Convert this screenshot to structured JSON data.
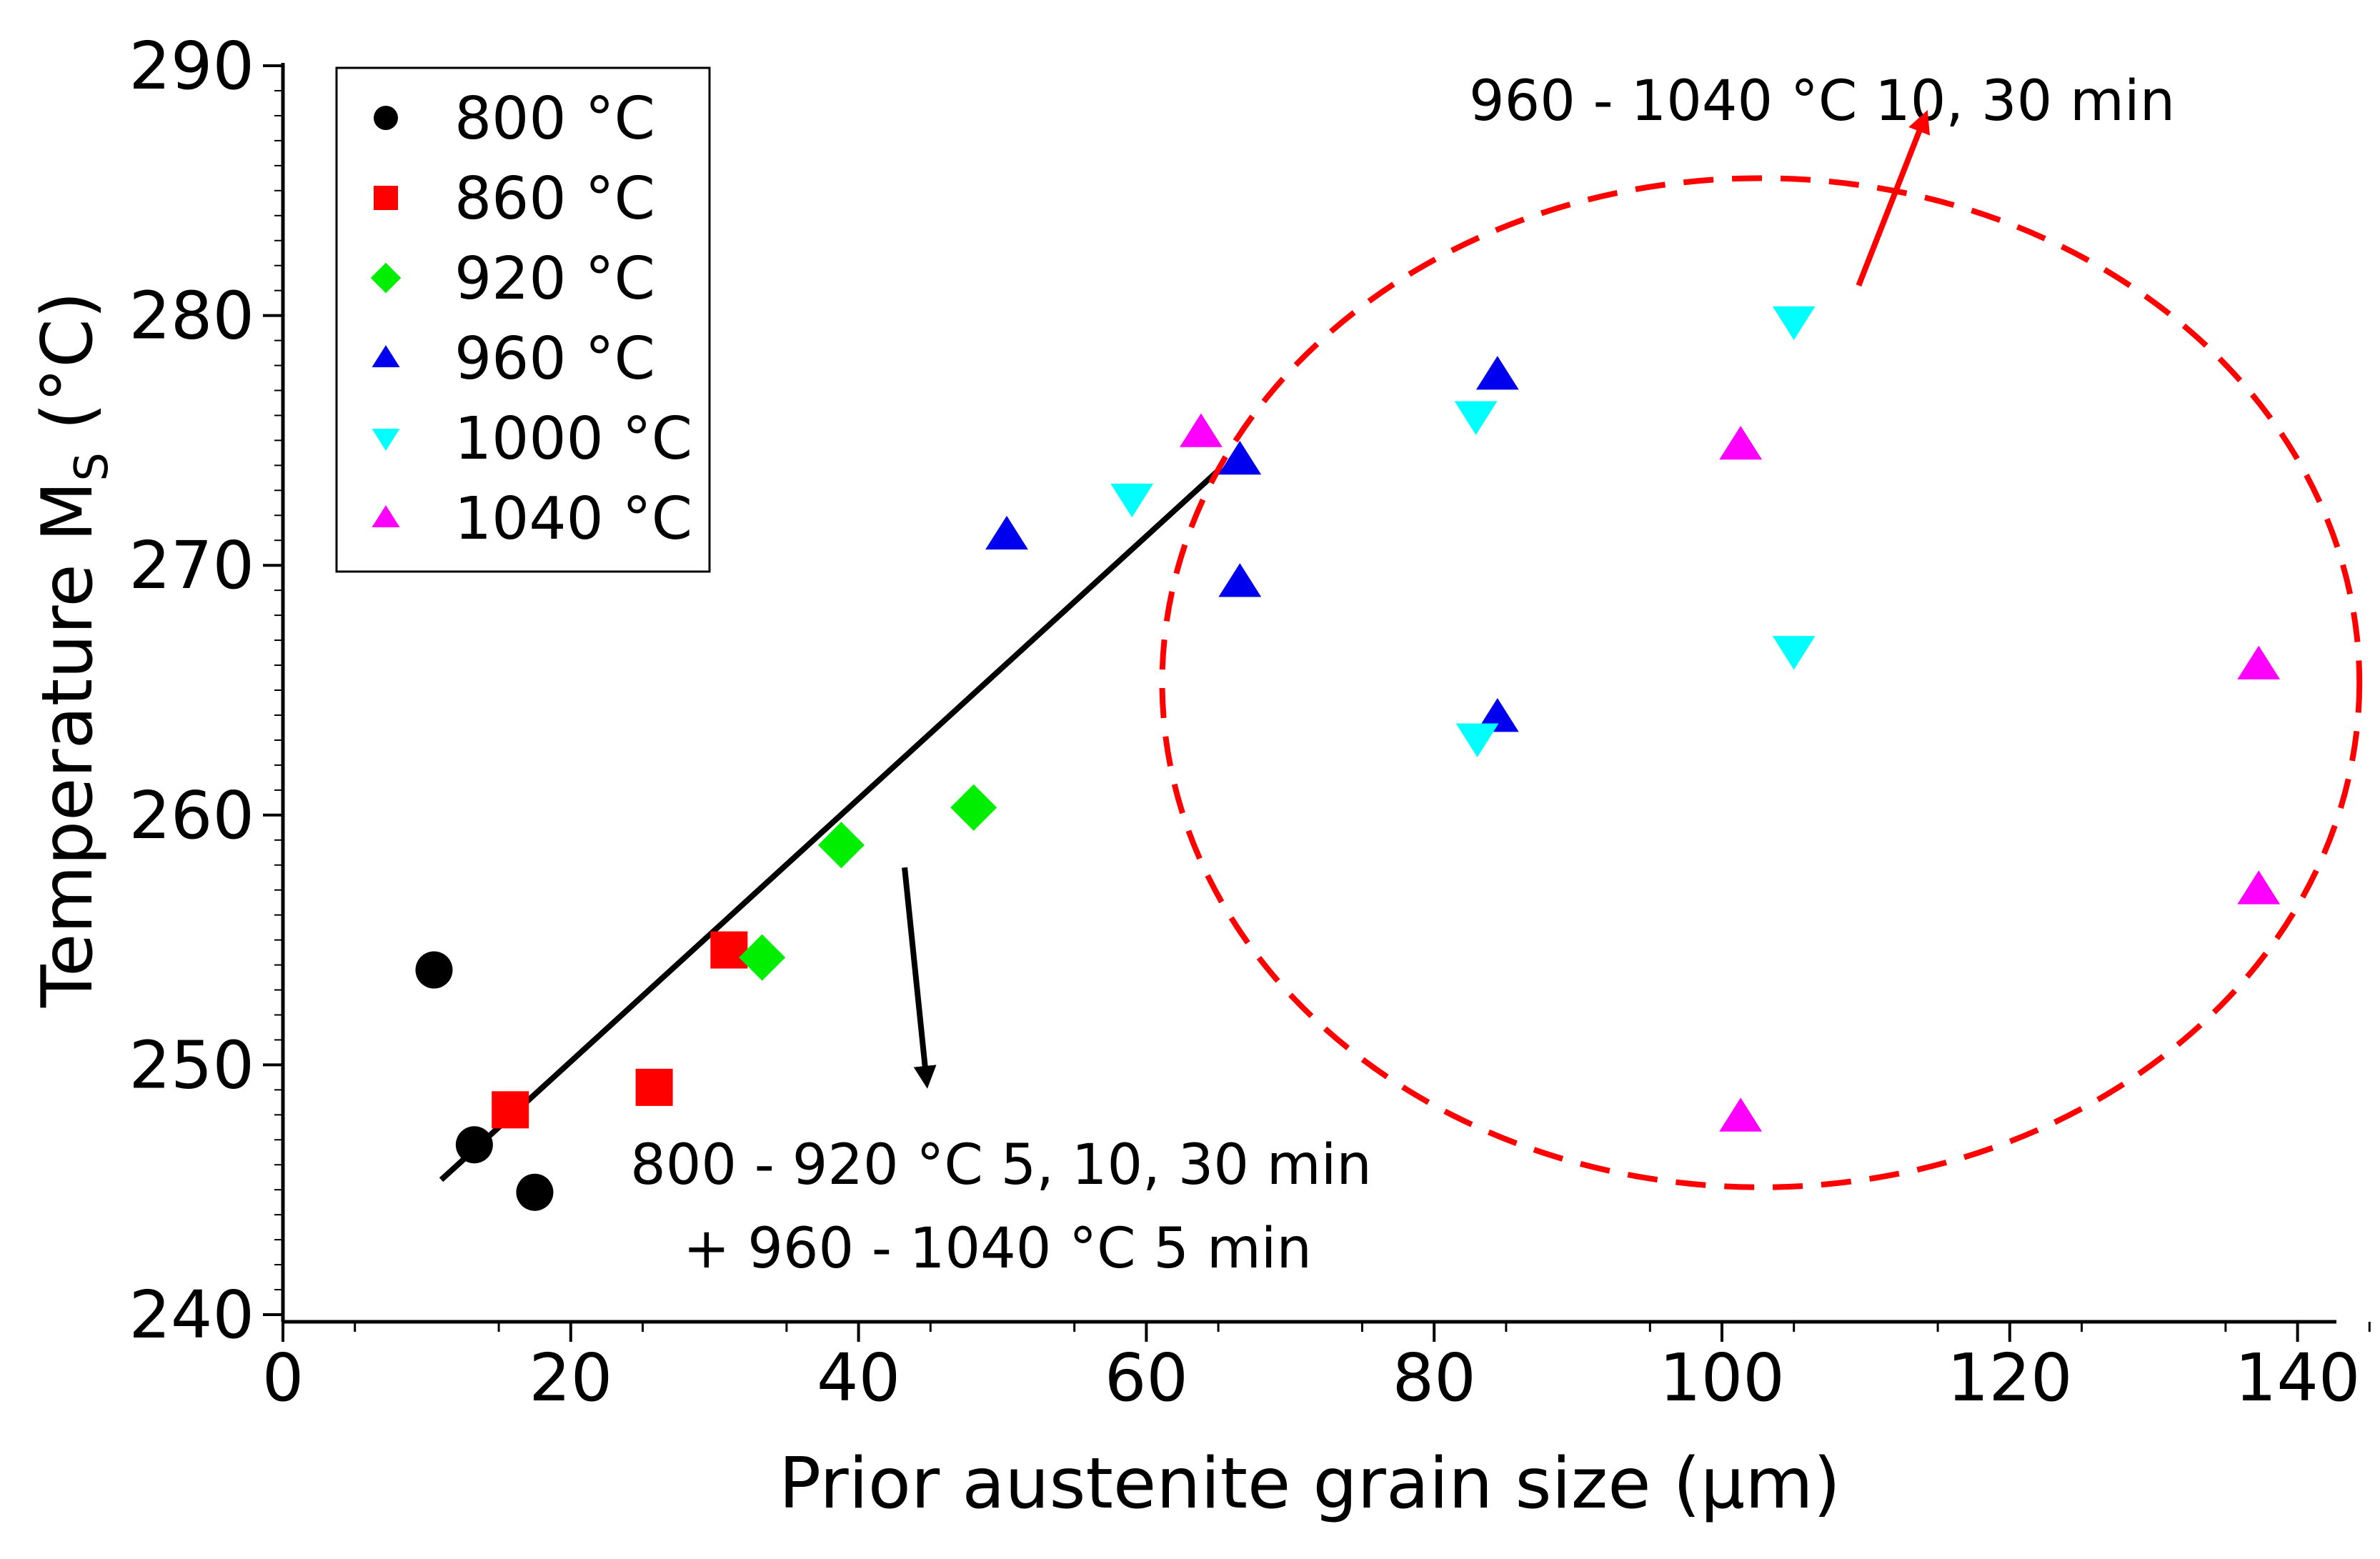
{
  "chart_data": {
    "type": "scatter",
    "title": "",
    "xlabel": "Prior austenite grain size (µm)",
    "ylabel_main": "Temperature M",
    "ylabel_sub": "S",
    "ylabel_unit": " (°C)",
    "xlim": [
      0,
      150
    ],
    "ylim": [
      240,
      290
    ],
    "xticks": [
      0,
      20,
      40,
      60,
      80,
      100,
      120,
      140
    ],
    "yticks": [
      240,
      250,
      260,
      270,
      280,
      290
    ],
    "grid": false,
    "legend_position": "top-left",
    "series": [
      {
        "name": "800 °C",
        "marker": "circle",
        "color": "#000000",
        "points": [
          [
            10.5,
            253.8
          ],
          [
            13.3,
            246.8
          ],
          [
            17.5,
            244.9
          ]
        ]
      },
      {
        "name": "860 °C",
        "marker": "square",
        "color": "#ff0000",
        "points": [
          [
            15.8,
            248.2
          ],
          [
            25.8,
            249.1
          ],
          [
            31.0,
            254.6
          ]
        ]
      },
      {
        "name": "920 °C",
        "marker": "diamond",
        "color": "#00ee00",
        "points": [
          [
            33.3,
            254.3
          ],
          [
            38.8,
            258.8
          ],
          [
            48.0,
            260.3
          ]
        ]
      },
      {
        "name": "960 °C",
        "marker": "triangle-up",
        "color": "#0000ee",
        "points": [
          [
            50.3,
            271.2
          ],
          [
            66.5,
            274.2
          ],
          [
            66.5,
            269.3
          ],
          [
            84.4,
            277.6
          ],
          [
            84.4,
            263.9
          ]
        ]
      },
      {
        "name": "1000 °C",
        "marker": "triangle-down",
        "color": "#00ffff",
        "points": [
          [
            59.0,
            272.7
          ],
          [
            82.9,
            276.0
          ],
          [
            83.0,
            263.1
          ],
          [
            105.0,
            279.8
          ],
          [
            105.0,
            266.6
          ]
        ]
      },
      {
        "name": "1040 °C",
        "marker": "triangle-up",
        "color": "#ff00ff",
        "points": [
          [
            63.8,
            275.3
          ],
          [
            101.3,
            274.8
          ],
          [
            101.3,
            247.9
          ],
          [
            137.3,
            266.0
          ],
          [
            137.3,
            257.0
          ]
        ]
      }
    ],
    "fit_line": {
      "x": [
        11.0,
        65.2
      ],
      "y": [
        245.4,
        273.9
      ],
      "color": "#000000"
    },
    "highlight_ellipse": {
      "center": [
        102.7,
        265.3
      ],
      "rx": 41.6,
      "ry": 20.2,
      "color": "#ff0000"
    },
    "annotations": [
      {
        "text": "960 - 1040 °C 10, 30 min",
        "color": "#ff0000",
        "arrow_from": [
          109.5,
          281.2
        ],
        "arrow_to": [
          114.0,
          287.8
        ]
      },
      {
        "text_lines": [
          "800 - 920 °C 5, 10, 30 min",
          "+ 960 - 1040 °C 5 min"
        ],
        "color": "#000000",
        "arrow_from": [
          43.2,
          257.9
        ],
        "arrow_to": [
          44.7,
          249.5
        ]
      }
    ]
  }
}
